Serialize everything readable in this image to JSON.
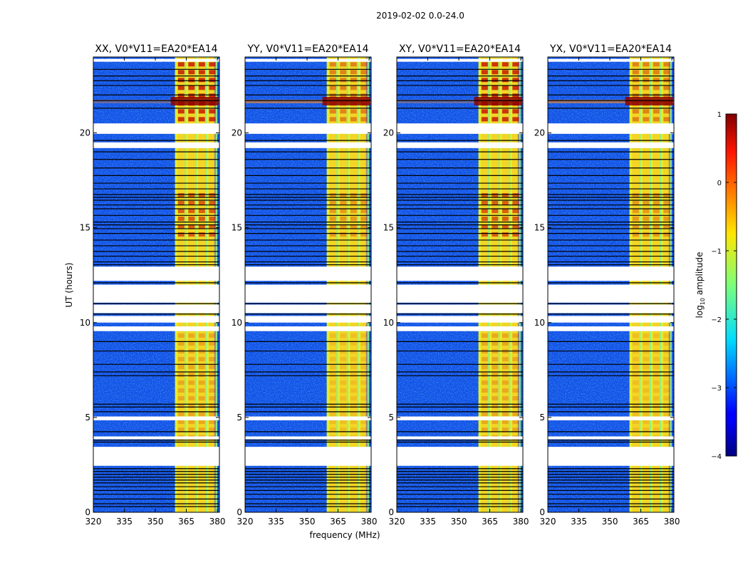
{
  "chart_data": {
    "type": "heatmap",
    "suptitle": "2019-02-02 0.0-24.0",
    "xlabel": "frequency (MHz)",
    "ylabel": "UT (hours)",
    "xlim": [
      320,
      381
    ],
    "ylim": [
      0,
      24
    ],
    "xticks": [
      320,
      335,
      350,
      365,
      380
    ],
    "yticks": [
      0,
      5,
      10,
      15,
      20
    ],
    "panels": [
      {
        "title": "XX, V0*V11=EA20*EA14",
        "strong": true
      },
      {
        "title": "YY, V0*V11=EA20*EA14",
        "strong": false
      },
      {
        "title": "XY, V0*V11=EA20*EA14",
        "strong": true
      },
      {
        "title": "YX, V0*V11=EA20*EA14",
        "strong": false
      }
    ],
    "rfi_band_mhz": [
      359.5,
      378.5
    ],
    "rfi_channels_mhz": [
      362.5,
      367.5,
      372.5,
      377.5
    ],
    "rfi_hot_hours": [
      [
        14.8,
        16.9,
        0.55
      ],
      [
        20.8,
        23.8,
        0.75
      ],
      [
        4.0,
        9.5,
        0.2
      ]
    ],
    "gaps_hours": [
      [
        2.45,
        3.45
      ],
      [
        3.85,
        4.0
      ],
      [
        4.85,
        5.05
      ],
      [
        9.55,
        9.8
      ],
      [
        10.0,
        10.35
      ],
      [
        10.5,
        10.95
      ],
      [
        11.05,
        12.0
      ],
      [
        12.2,
        12.95
      ],
      [
        19.2,
        19.5
      ],
      [
        19.95,
        20.5
      ],
      [
        23.75,
        23.9
      ]
    ],
    "flag_lines_hours": [
      0.3,
      0.45,
      0.7,
      0.95,
      1.15,
      1.35,
      1.55,
      1.7,
      1.85,
      2.0,
      2.15,
      2.3,
      3.7,
      3.8,
      4.25,
      5.3,
      5.55,
      5.7,
      7.2,
      7.4,
      7.8,
      8.5,
      9.0,
      10.45,
      11.0,
      12.1,
      13.05,
      13.2,
      13.5,
      13.75,
      14.05,
      14.35,
      14.7,
      14.95,
      15.15,
      15.3,
      15.65,
      16.0,
      16.2,
      16.45,
      16.6,
      16.75,
      17.05,
      17.35,
      17.75,
      18.15,
      18.6,
      19.0,
      19.6,
      21.3,
      21.7,
      22.0,
      22.5,
      22.75,
      23.0,
      23.35
    ],
    "colorbar": {
      "label": "log10 amplitude",
      "label_main": "log",
      "label_sub": "10",
      "label_tail": " amplitude",
      "min": -4,
      "max": 1,
      "ticks": [
        1,
        0,
        -1,
        -2,
        -3,
        -4
      ],
      "tick_labels": [
        "1",
        "0",
        "−1",
        "−2",
        "−3",
        "−4"
      ]
    }
  }
}
